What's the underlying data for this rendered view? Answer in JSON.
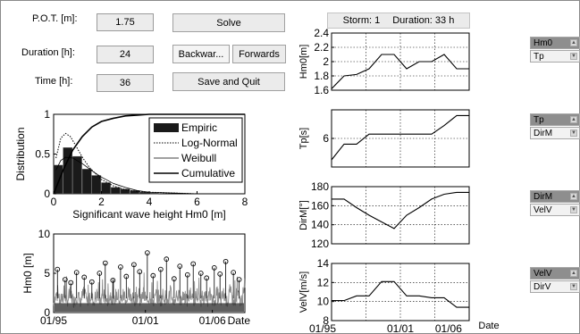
{
  "inputs": {
    "pot_label": "P.O.T. [m]:",
    "pot_value": "1.75",
    "duration_label": "Duration [h]:",
    "duration_value": "24",
    "time_label": "Time [h]:",
    "time_value": "36"
  },
  "buttons": {
    "solve": "Solve",
    "backward": "Backwar...",
    "forwards": "Forwards",
    "save_quit": "Save and Quit"
  },
  "storm_info": {
    "storm": "Storm: 1",
    "duration": "Duration: 33 h"
  },
  "dropdowns": [
    {
      "selected": "Hm0",
      "next": "Tp"
    },
    {
      "selected": "Tp",
      "next": "DirM"
    },
    {
      "selected": "DirM",
      "next": "VelV"
    },
    {
      "selected": "VelV",
      "next": "DirV"
    }
  ],
  "colors": {
    "bars": "#1a1a1a",
    "timeseries": "#8c8c8c",
    "panel_bg": "#ffffff",
    "selected_item": "#8e8e8e"
  },
  "chart_data": [
    {
      "type": "bar",
      "xlabel": "Significant wave height Hm0 [m]",
      "ylabel": "Distribution",
      "xlim": [
        0,
        8
      ],
      "ylim": [
        0,
        1
      ],
      "xticks": [
        "0",
        "2",
        "4",
        "6",
        "8"
      ],
      "yticks": [
        "0",
        "0.5",
        "1"
      ],
      "bin_edges": [
        0,
        0.4,
        0.8,
        1.2,
        1.6,
        2.0,
        2.4,
        2.8,
        3.2,
        3.6,
        4.0,
        4.4
      ],
      "values": [
        0.36,
        0.58,
        0.47,
        0.31,
        0.23,
        0.14,
        0.08,
        0.06,
        0.04,
        0.02,
        0.01
      ],
      "legend": [
        "Empiric",
        "Log-Normal",
        "Weibull",
        "Cumulative"
      ],
      "legend_position": "top-right",
      "lognormal": {
        "x": [
          0.1,
          0.3,
          0.5,
          0.7,
          0.9,
          1.2,
          1.5,
          2.0,
          2.5,
          3.0,
          3.5,
          4.0,
          5.0,
          6.0,
          8.0
        ],
        "y": [
          0.45,
          0.7,
          0.76,
          0.72,
          0.62,
          0.46,
          0.33,
          0.18,
          0.1,
          0.05,
          0.03,
          0.02,
          0.01,
          0.0,
          0.0
        ]
      },
      "weibull": {
        "x": [
          0.1,
          0.3,
          0.5,
          0.8,
          1.2,
          1.6,
          2.0,
          2.5,
          3.0,
          3.5,
          4.0,
          5.0,
          6.0,
          8.0
        ],
        "y": [
          0.3,
          0.42,
          0.46,
          0.45,
          0.38,
          0.29,
          0.21,
          0.13,
          0.08,
          0.04,
          0.02,
          0.01,
          0.0,
          0.0
        ]
      },
      "cumulative": {
        "x": [
          0,
          0.4,
          0.8,
          1.2,
          1.6,
          2.0,
          2.5,
          3.0,
          3.5,
          4.0,
          5.0,
          6.0,
          8.0
        ],
        "y": [
          0.0,
          0.3,
          0.55,
          0.72,
          0.84,
          0.91,
          0.95,
          0.98,
          0.99,
          1.0,
          1.0,
          1.0,
          1.0
        ]
      }
    },
    {
      "type": "line",
      "ylabel": "Hm0 [m]",
      "xlabel": "Date",
      "xlim": [
        0,
        1
      ],
      "ylim": [
        0,
        10
      ],
      "xticks": [
        "01/95",
        "01/01",
        "01/06"
      ],
      "xtick_positions": [
        0.0,
        0.48,
        0.83
      ],
      "yticks": [
        "0",
        "5",
        "10"
      ],
      "series": [
        {
          "values": "noisy wave height series, peaks marked with circles above P.O.T. threshold"
        }
      ],
      "peaks": [
        [
          0.02,
          5.5
        ],
        [
          0.06,
          4.2
        ],
        [
          0.09,
          3.8
        ],
        [
          0.12,
          5.1
        ],
        [
          0.16,
          4.5
        ],
        [
          0.2,
          3.9
        ],
        [
          0.24,
          5.0
        ],
        [
          0.27,
          6.3
        ],
        [
          0.31,
          4.1
        ],
        [
          0.35,
          5.8
        ],
        [
          0.38,
          4.6
        ],
        [
          0.42,
          6.1
        ],
        [
          0.45,
          5.2
        ],
        [
          0.49,
          7.6
        ],
        [
          0.52,
          4.7
        ],
        [
          0.56,
          5.5
        ],
        [
          0.59,
          6.8
        ],
        [
          0.63,
          4.3
        ],
        [
          0.66,
          5.9
        ],
        [
          0.7,
          4.8
        ],
        [
          0.73,
          6.2
        ],
        [
          0.77,
          5.0
        ],
        [
          0.8,
          4.4
        ],
        [
          0.84,
          5.7
        ],
        [
          0.87,
          4.9
        ],
        [
          0.9,
          6.5
        ],
        [
          0.94,
          5.1
        ],
        [
          0.97,
          4.2
        ]
      ]
    },
    {
      "type": "line",
      "ylabel": "Hm0[m]",
      "ylim": [
        1.6,
        2.4
      ],
      "yticks": [
        "1.6",
        "1.8",
        "2",
        "2.2",
        "2.4"
      ],
      "xlim": [
        0,
        33
      ],
      "x": [
        0,
        3,
        6,
        9,
        12,
        15,
        18,
        21,
        24,
        27,
        30,
        33
      ],
      "values": [
        1.62,
        1.8,
        1.82,
        1.9,
        2.1,
        2.1,
        1.9,
        2.0,
        2.0,
        2.1,
        1.9,
        1.9
      ]
    },
    {
      "type": "line",
      "ylabel": "Tp[s]",
      "ylim": [
        4,
        8
      ],
      "yticks": [
        "6"
      ],
      "xlim": [
        0,
        33
      ],
      "x": [
        0,
        3,
        6,
        9,
        12,
        15,
        18,
        21,
        24,
        27,
        30,
        33
      ],
      "values": [
        4.5,
        5.6,
        5.6,
        6.3,
        6.3,
        6.3,
        6.3,
        6.3,
        6.3,
        6.9,
        7.6,
        7.6
      ]
    },
    {
      "type": "line",
      "ylabel": "DirM[°]",
      "ylim": [
        120,
        180
      ],
      "yticks": [
        "120",
        "140",
        "160",
        "180"
      ],
      "xlim": [
        0,
        33
      ],
      "x": [
        0,
        3,
        6,
        9,
        12,
        15,
        18,
        21,
        24,
        27,
        30,
        33
      ],
      "values": [
        167,
        167,
        158,
        150,
        143,
        136,
        150,
        158,
        167,
        172,
        174,
        174
      ]
    },
    {
      "type": "line",
      "ylabel": "VelV[m/s]",
      "ylim": [
        8,
        14
      ],
      "yticks": [
        "8",
        "10",
        "12",
        "14"
      ],
      "xlim": [
        0,
        33
      ],
      "xticks": [
        "01/95",
        "01/01",
        "01/06"
      ],
      "xlabel": "Date",
      "x": [
        0,
        3,
        6,
        9,
        12,
        15,
        18,
        21,
        24,
        27,
        30,
        33
      ],
      "values": [
        10.1,
        10.1,
        10.6,
        10.6,
        12.1,
        12.1,
        10.6,
        10.6,
        10.4,
        10.4,
        9.4,
        9.4
      ]
    }
  ]
}
